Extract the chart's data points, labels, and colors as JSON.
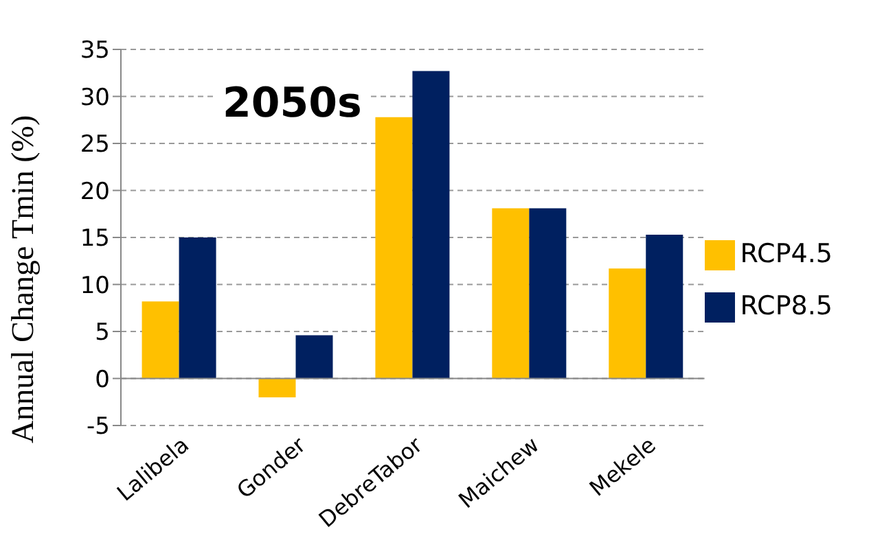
{
  "chart_data": {
    "type": "bar",
    "title": "2050s",
    "ylabel": "Annual Change Tmin (%)",
    "categories": [
      "Lalibela",
      "Gonder",
      "DebreTabor",
      "Maichew",
      "Mekele"
    ],
    "series": [
      {
        "name": "RCP4.5",
        "color": "#ffc000",
        "values": [
          8.2,
          -2.0,
          27.8,
          18.1,
          11.7
        ]
      },
      {
        "name": "RCP8.5",
        "color": "#002060",
        "values": [
          15.0,
          4.6,
          32.7,
          18.1,
          15.3
        ]
      }
    ],
    "ylim": [
      -5,
      35
    ],
    "yticks": [
      -5,
      0,
      5,
      10,
      15,
      20,
      25,
      30,
      35
    ],
    "grid": "y",
    "legend": "right"
  }
}
